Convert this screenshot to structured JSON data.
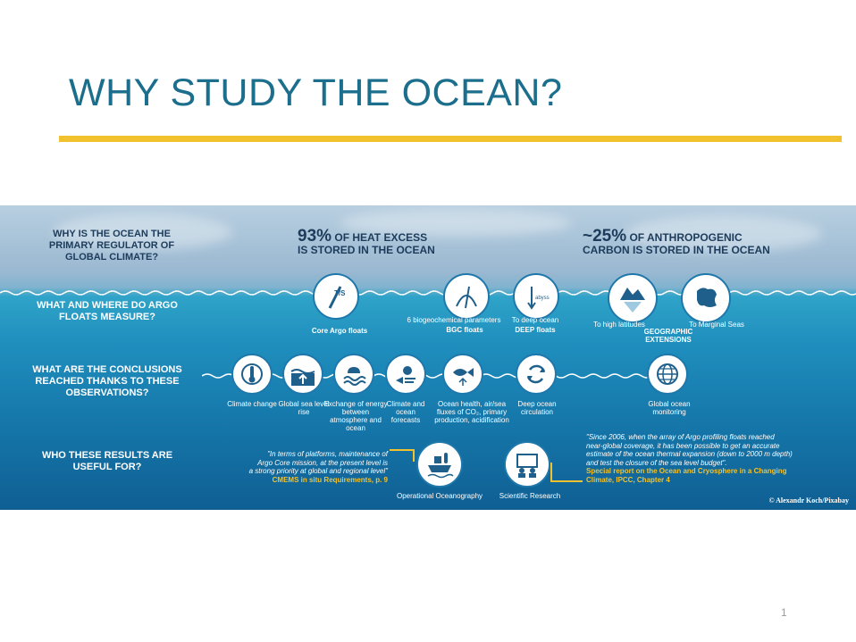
{
  "slide": {
    "title": "WHY STUDY THE OCEAN?",
    "page_number": "1"
  },
  "infographic": {
    "questions": {
      "q1": "WHY IS THE OCEAN THE PRIMARY REGULATOR OF GLOBAL CLIMATE?",
      "q2": "WHAT AND WHERE DO ARGO FLOATS MEASURE?",
      "q3": "WHAT ARE THE CONCLUSIONS REACHED THANKS TO THESE OBSERVATIONS?",
      "q4": "WHO THESE RESULTS ARE USEFUL FOR?"
    },
    "stats": {
      "heat_big": "93%",
      "heat_rest_1": " OF HEAT EXCESS",
      "heat_rest_2": "IS STORED IN THE OCEAN",
      "carbon_big": "~25%",
      "carbon_rest_1": " OF ANTHROPOGENIC",
      "carbon_rest_2": "CARBON IS STORED IN THE OCEAN"
    },
    "floats": {
      "core_label": "Core Argo floats",
      "core_icon_text": "T/S",
      "bgc_params": "6 biogeochemical parameters",
      "bgc_label": "BGC floats",
      "deep_params": "To deep ocean",
      "deep_label": "DEEP floats",
      "deep_icon_text": "abyss",
      "high_lat": "To high latitudes",
      "marginal": "To Marginal Seas",
      "geo_ext": "GEOGRAPHIC EXTENSIONS"
    },
    "conclusions": [
      {
        "label": "Climate change",
        "icon": "thermometer-globe-icon"
      },
      {
        "label": "Global sea level rise",
        "icon": "sea-level-icon"
      },
      {
        "label": "Exchange of energy between atmosphere and ocean",
        "icon": "cloud-wave-icon"
      },
      {
        "label": "Climate and ocean forecasts",
        "icon": "weather-icon"
      },
      {
        "label": "Ocean health, air/sea fluxes of CO₂, primary production, acidification",
        "icon": "fish-icon"
      },
      {
        "label": "Deep ocean circulation",
        "icon": "circulation-icon"
      },
      {
        "label": "Global ocean monitoring",
        "icon": "globe-icon"
      }
    ],
    "users": {
      "op_label": "Operational Oceanography",
      "sci_label": "Scientific Research",
      "quote_left_1": "\"In terms of platforms, maintenance of",
      "quote_left_2": "Argo Core mission, at the present level is",
      "quote_left_3": "a strong priority at global and regional level\"",
      "quote_left_src": "CMEMS in situ Requirements, p. 9",
      "quote_right_1": "\"Since 2006, when the array of Argo profiling floats reached",
      "quote_right_2": "near-global coverage, it has been possible to get an accurate",
      "quote_right_3": "estimate of the ocean thermal expansion (down to 2000 m depth)",
      "quote_right_4": "and test the closure of the sea level budget\".",
      "quote_right_src_1": "Special report on the Ocean and Cryosphere in a Changing",
      "quote_right_src_2": "Climate, IPCC, Chapter 4"
    },
    "credit": "© Alexandr Koch/Pixabay"
  }
}
